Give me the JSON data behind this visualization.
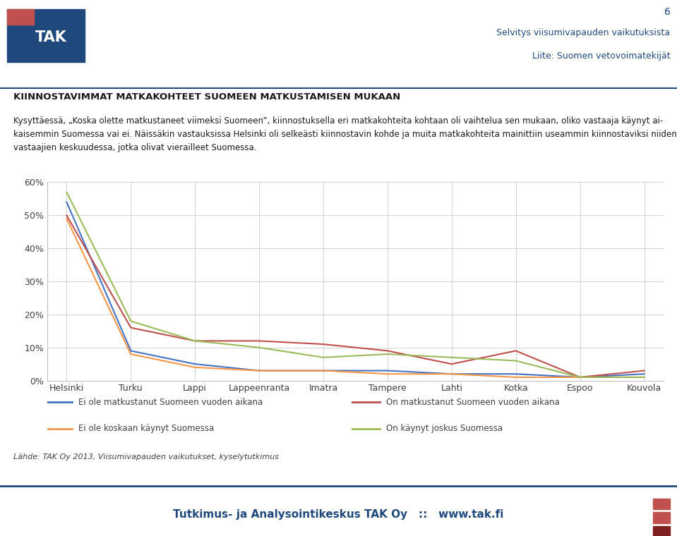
{
  "categories": [
    "Helsinki",
    "Turku",
    "Lappi",
    "Lappeenranta",
    "Imatra",
    "Tampere",
    "Lahti",
    "Kotka",
    "Espoo",
    "Kouvola"
  ],
  "series": {
    "Ei ole matkustanut Suomeen vuoden aikana": [
      54,
      9,
      5,
      3,
      3,
      3,
      2,
      2,
      1,
      2
    ],
    "On matkustanut Suomeen vuoden aikana": [
      50,
      16,
      12,
      12,
      11,
      9,
      5,
      9,
      1,
      3
    ],
    "Ei ole koskaan käynyt Suomessa": [
      49,
      8,
      4,
      3,
      3,
      2,
      2,
      1,
      1,
      1
    ],
    "On käynyt joskus Suomessa": [
      57,
      18,
      12,
      10,
      7,
      8,
      7,
      6,
      1,
      1
    ]
  },
  "colors": {
    "Ei ole matkustanut Suomeen vuoden aikana": "#4472C4",
    "On matkustanut Suomeen vuoden aikana": "#C0504D",
    "Ei ole koskaan käynyt Suomessa": "#F79646",
    "On käynyt joskus Suomessa": "#9BBB59"
  },
  "ylim": [
    0,
    60
  ],
  "yticks": [
    0,
    10,
    20,
    30,
    40,
    50,
    60
  ],
  "ytick_labels": [
    "0%",
    "10%",
    "20%",
    "30%",
    "40%",
    "50%",
    "60%"
  ],
  "header_title": "KIINNOSTAVIMMAT MATKAKOHTEET SUOMEEN MATKUSTAMISEN MUKAAN",
  "body_line1": "Kysyttäessä, „Koska olette matkustaneet viimeksi Suomeen”, kiinnostuksella eri matkakohteita kohtaan oli vaihtelua sen mukaan, oliko vastaaja käynyt ai-",
  "body_line2": "kaisemmin Suomessa vai ei. Näissäkin vastauksissa Helsinki oli selkeästi kiinnostavin kohde ja muita matkakohteita mainittiin useammin kiinnostaviksi niiden",
  "body_line3": "vastaajien keskuudessa, jotka olivat vierailleet Suomessa.",
  "page_number": "6",
  "subtitle1": "Selvitys viisumivapauden vaikutuksista",
  "subtitle2": "Liite: Suomen vetovoimatekijät",
  "source_text": "Lähde: TAK Oy 2013, Viisumivapauden vaikutukset, kyselytutkimus",
  "footer_text": "Tutkimus- ja Analysointikeskus TAK Oy   ::   www.tak.fi",
  "line_color": "#1F497D",
  "header_color": "#1F497D",
  "grid_color": "#BFBFBF",
  "background_color": "#FFFFFF",
  "footer_bg": "#F2F2F2"
}
